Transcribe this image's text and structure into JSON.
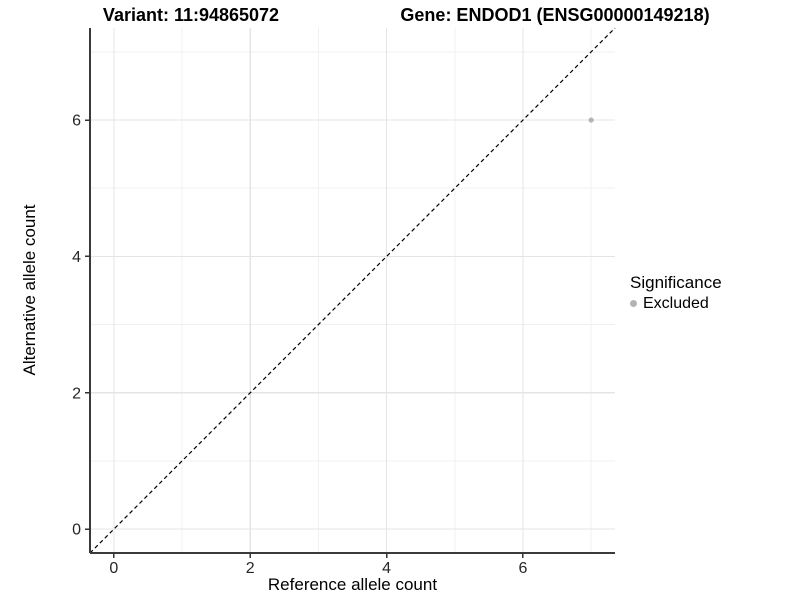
{
  "titles": {
    "variant": "Variant: 11:94865072",
    "gene": "Gene: ENDOD1 (ENSG00000149218)"
  },
  "axes": {
    "x": {
      "label": "Reference allele count"
    },
    "y": {
      "label": "Alternative allele count"
    }
  },
  "legend": {
    "title": "Significance",
    "items": [
      {
        "label": "Excluded",
        "color": "#b3b3b3",
        "marker": "circle"
      }
    ]
  },
  "chart_data": {
    "type": "scatter",
    "title": "Variant: 11:94865072 | Gene: ENDOD1 (ENSG00000149218)",
    "xlabel": "Reference allele count",
    "ylabel": "Alternative allele count",
    "xlim": [
      -0.35,
      7.35
    ],
    "ylim": [
      -0.35,
      7.35
    ],
    "x_ticks": [
      0,
      2,
      4,
      6
    ],
    "y_ticks": [
      0,
      2,
      4,
      6
    ],
    "x_minor_ticks": [
      1,
      3,
      5,
      7
    ],
    "y_minor_ticks": [
      1,
      3,
      5,
      7
    ],
    "grid": "major+minor",
    "legend_position": "right",
    "series": [
      {
        "name": "Excluded",
        "color": "#b3b3b3",
        "point_radius": 2.6,
        "points": [
          {
            "x": 7,
            "y": 6
          }
        ]
      }
    ],
    "reference_line": {
      "type": "identity y=x",
      "style": "dashed",
      "color": "#000000",
      "from": [
        -0.35,
        -0.35
      ],
      "to": [
        7.35,
        7.35
      ]
    }
  },
  "colors": {
    "background": "#ffffff",
    "grid_major": "#e4e4e4",
    "grid_minor": "#f0f0f0",
    "axis_line": "#3a3a3a",
    "tick": "#333333",
    "text": "#000000",
    "excluded_point": "#b3b3b3"
  }
}
